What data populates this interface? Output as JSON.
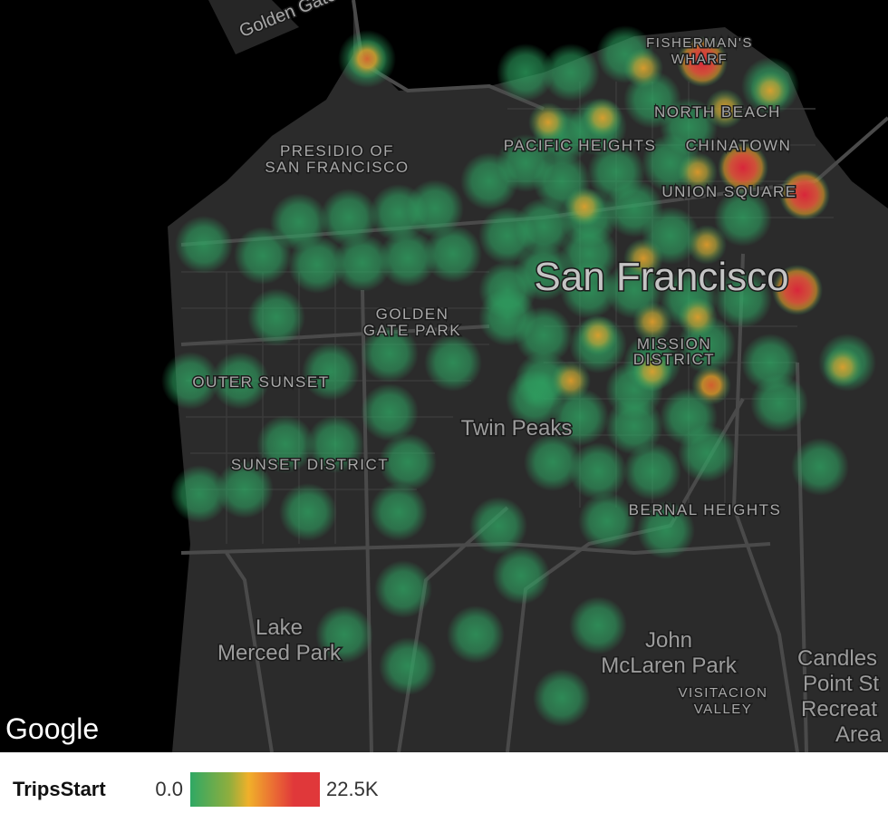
{
  "map": {
    "labels": [
      {
        "lines": [
          "Golden Gate"
        ]
      },
      {
        "lines": [
          "PRESIDIO OF",
          "SAN FRANCISCO"
        ]
      },
      {
        "lines": [
          "FISHERMAN'S",
          "WHARF"
        ]
      },
      {
        "lines": [
          "NORTH BEACH"
        ]
      },
      {
        "lines": [
          "PACIFIC HEIGHTS"
        ]
      },
      {
        "lines": [
          "CHINATOWN"
        ]
      },
      {
        "lines": [
          "UNION SQUARE"
        ]
      },
      {
        "lines": [
          "San Francisco"
        ]
      },
      {
        "lines": [
          "GOLDEN",
          "GATE PARK"
        ]
      },
      {
        "lines": [
          "MISSION",
          "DISTRICT"
        ]
      },
      {
        "lines": [
          "OUTER SUNSET"
        ]
      },
      {
        "lines": [
          "Twin Peaks"
        ]
      },
      {
        "lines": [
          "SUNSET DISTRICT"
        ]
      },
      {
        "lines": [
          "BERNAL HEIGHTS"
        ]
      },
      {
        "lines": [
          "Lake",
          "Merced Park"
        ]
      },
      {
        "lines": [
          "John",
          "McLaren Park"
        ]
      },
      {
        "lines": [
          "VISITACION",
          "VALLEY"
        ]
      },
      {
        "lines": [
          "Candles",
          "Point St",
          "Recreat",
          "Area"
        ]
      }
    ]
  },
  "attribution": "Google",
  "legend": {
    "title": "TripsStart",
    "min": {
      "value": 0,
      "label": "0.0"
    },
    "max": {
      "value": 22500,
      "label": "22.5K"
    }
  }
}
